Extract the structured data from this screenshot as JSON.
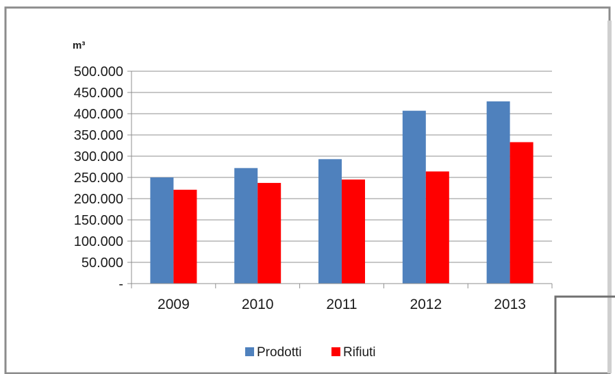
{
  "chart_data": {
    "type": "bar",
    "title": "",
    "ylabel": "m³",
    "xlabel": "",
    "categories": [
      "2009",
      "2010",
      "2011",
      "2012",
      "2013"
    ],
    "series": [
      {
        "name": "Prodotti",
        "color": "#4f81bd",
        "values": [
          250000,
          272000,
          293000,
          407000,
          429000
        ]
      },
      {
        "name": "Rifiuti",
        "color": "#ff0000",
        "values": [
          221000,
          237000,
          245000,
          264000,
          333000
        ]
      }
    ],
    "ylim": [
      0,
      500000
    ],
    "yticks": [
      0,
      50000,
      100000,
      150000,
      200000,
      250000,
      300000,
      350000,
      400000,
      450000,
      500000
    ],
    "ytick_labels": [
      "-",
      "50.000",
      "100.000",
      "150.000",
      "200.000",
      "250.000",
      "300.000",
      "350.000",
      "400.000",
      "450.000",
      "500.000"
    ],
    "grid": true,
    "legend_position": "bottom"
  }
}
